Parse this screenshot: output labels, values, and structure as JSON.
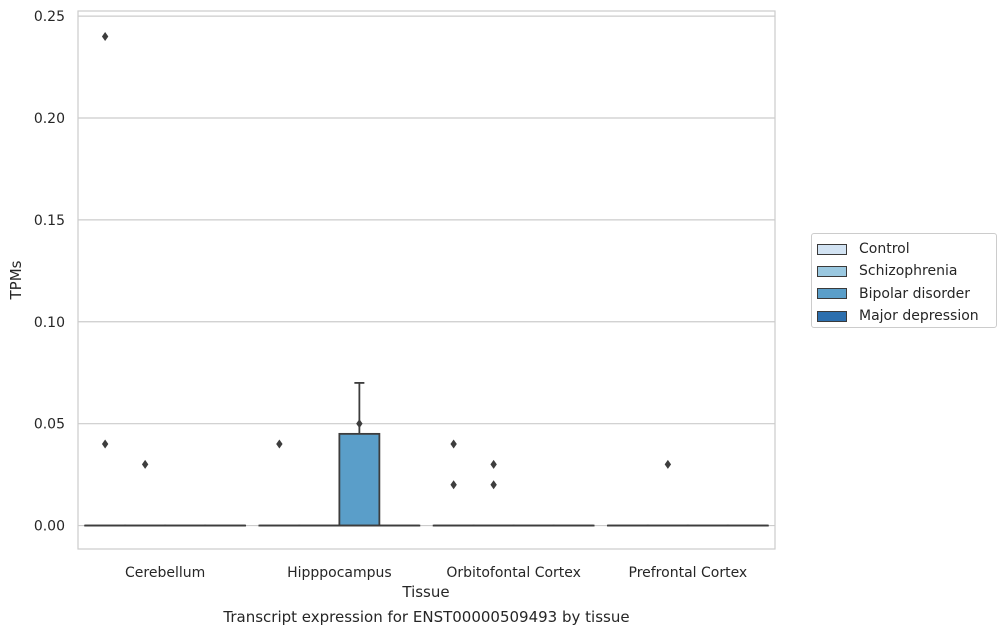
{
  "chart_data": {
    "type": "box",
    "title": "",
    "xlabel": "Tissue",
    "ylabel": "TPMs",
    "caption": "Transcript expression for ENST00000509493 by tissue",
    "ylim": [
      -0.0115,
      0.2525
    ],
    "yticks": [
      0.0,
      0.05,
      0.1,
      0.15,
      0.2,
      0.25
    ],
    "ytick_labels": [
      "0.00",
      "0.05",
      "0.10",
      "0.15",
      "0.20",
      "0.25"
    ],
    "grid": "horizontal",
    "legend_position": "right",
    "categories": [
      "Cerebellum",
      "Hipppocampus",
      "Orbitofontal Cortex",
      "Prefrontal Cortex"
    ],
    "series": [
      {
        "name": "Control",
        "color": "#d2e3f3",
        "boxes": [
          {
            "q1": 0,
            "median": 0,
            "q3": 0,
            "whisker_low": 0,
            "whisker_high": 0,
            "outliers": [
              0.24,
              0.04
            ]
          },
          {
            "q1": 0,
            "median": 0,
            "q3": 0,
            "whisker_low": 0,
            "whisker_high": 0,
            "outliers": [
              0.04
            ]
          },
          {
            "q1": 0,
            "median": 0,
            "q3": 0,
            "whisker_low": 0,
            "whisker_high": 0,
            "outliers": [
              0.04,
              0.02
            ]
          },
          {
            "q1": 0,
            "median": 0,
            "q3": 0,
            "whisker_low": 0,
            "whisker_high": 0,
            "outliers": []
          }
        ]
      },
      {
        "name": "Schizophrenia",
        "color": "#9ac8e0",
        "boxes": [
          {
            "q1": 0,
            "median": 0,
            "q3": 0,
            "whisker_low": 0,
            "whisker_high": 0,
            "outliers": [
              0.03
            ]
          },
          {
            "q1": 0,
            "median": 0,
            "q3": 0,
            "whisker_low": 0,
            "whisker_high": 0,
            "outliers": []
          },
          {
            "q1": 0,
            "median": 0,
            "q3": 0,
            "whisker_low": 0,
            "whisker_high": 0,
            "outliers": [
              0.03,
              0.02
            ]
          },
          {
            "q1": 0,
            "median": 0,
            "q3": 0,
            "whisker_low": 0,
            "whisker_high": 0,
            "outliers": [
              0.03
            ]
          }
        ]
      },
      {
        "name": "Bipolar disorder",
        "color": "#5a9ec9",
        "boxes": [
          {
            "q1": 0,
            "median": 0,
            "q3": 0,
            "whisker_low": 0,
            "whisker_high": 0,
            "outliers": []
          },
          {
            "q1": 0,
            "median": 0,
            "q3": 0.045,
            "whisker_low": 0,
            "whisker_high": 0.07,
            "outliers": [
              0.05
            ]
          },
          {
            "q1": 0,
            "median": 0,
            "q3": 0,
            "whisker_low": 0,
            "whisker_high": 0,
            "outliers": []
          },
          {
            "q1": 0,
            "median": 0,
            "q3": 0,
            "whisker_low": 0,
            "whisker_high": 0,
            "outliers": []
          }
        ]
      },
      {
        "name": "Major depression",
        "color": "#2c6fae",
        "boxes": [
          {
            "q1": 0,
            "median": 0,
            "q3": 0,
            "whisker_low": 0,
            "whisker_high": 0,
            "outliers": []
          },
          {
            "q1": 0,
            "median": 0,
            "q3": 0,
            "whisker_low": 0,
            "whisker_high": 0,
            "outliers": []
          },
          {
            "q1": 0,
            "median": 0,
            "q3": 0,
            "whisker_low": 0,
            "whisker_high": 0,
            "outliers": []
          },
          {
            "q1": 0,
            "median": 0,
            "q3": 0,
            "whisker_low": 0,
            "whisker_high": 0,
            "outliers": []
          }
        ]
      }
    ]
  }
}
